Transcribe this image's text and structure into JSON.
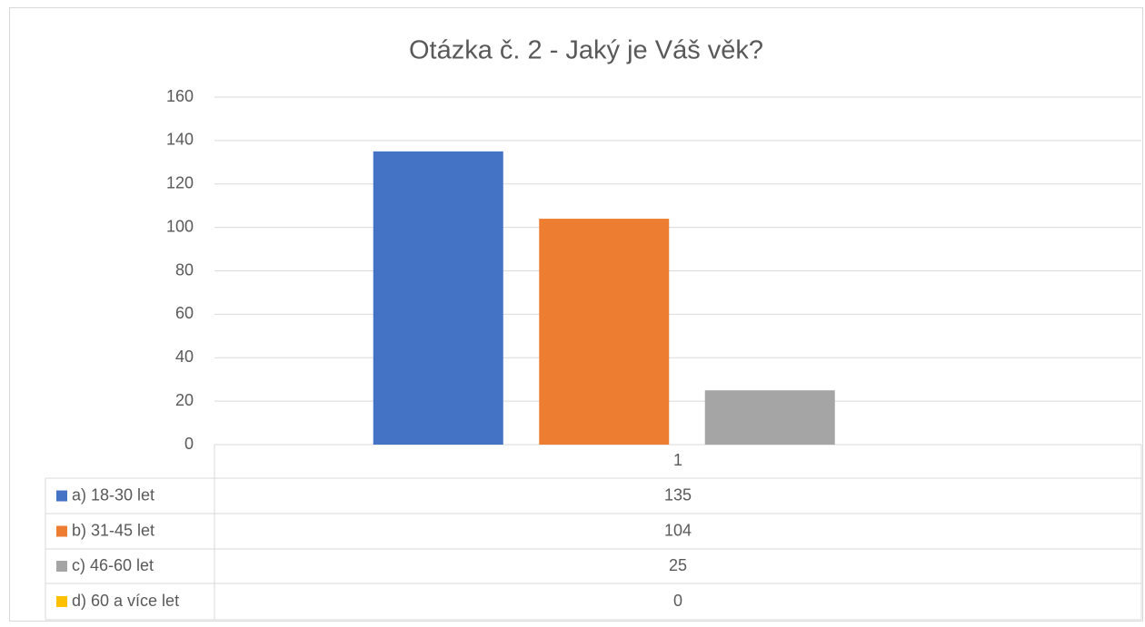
{
  "chart_data": {
    "type": "bar",
    "title": "Otázka č. 2 - Jaký je Váš věk?",
    "categories": [
      "1"
    ],
    "series": [
      {
        "name": "a) 18-30 let",
        "color": "#4472c4",
        "values": [
          135
        ]
      },
      {
        "name": "b) 31-45 let",
        "color": "#ed7d31",
        "values": [
          104
        ]
      },
      {
        "name": "c) 46-60 let",
        "color": "#a5a5a5",
        "values": [
          25
        ]
      },
      {
        "name": "d) 60 a více let",
        "color": "#ffc000",
        "values": [
          0
        ]
      }
    ],
    "ylim": [
      0,
      160
    ],
    "yticks": [
      0,
      20,
      40,
      60,
      80,
      100,
      120,
      140,
      160
    ],
    "grid": true
  }
}
